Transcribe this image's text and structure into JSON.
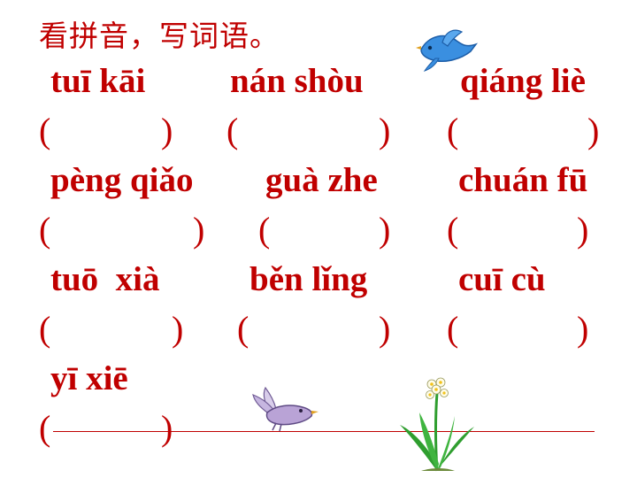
{
  "title": "看拼音，写词语。",
  "paren_open": "(",
  "paren_close": ")",
  "items": [
    {
      "pinyin": "tuī kāi"
    },
    {
      "pinyin": "nán shòu"
    },
    {
      "pinyin": "qiáng liè"
    },
    {
      "pinyin": "pèng qiǎo"
    },
    {
      "pinyin": "guà zhe"
    },
    {
      "pinyin": "chuán fū"
    },
    {
      "pinyin": "tuō  xià"
    },
    {
      "pinyin": "běn lǐng"
    },
    {
      "pinyin": "cuī cù"
    },
    {
      "pinyin": "yī xiē"
    }
  ],
  "colors": {
    "text": "#c00000",
    "bird_blue": "#3a8fe0",
    "bird_purple": "#b9a3d6",
    "plant_green": "#2f9e2f"
  },
  "icons": [
    "blue-bird-icon",
    "purple-bird-icon",
    "daffodil-plant-icon"
  ]
}
